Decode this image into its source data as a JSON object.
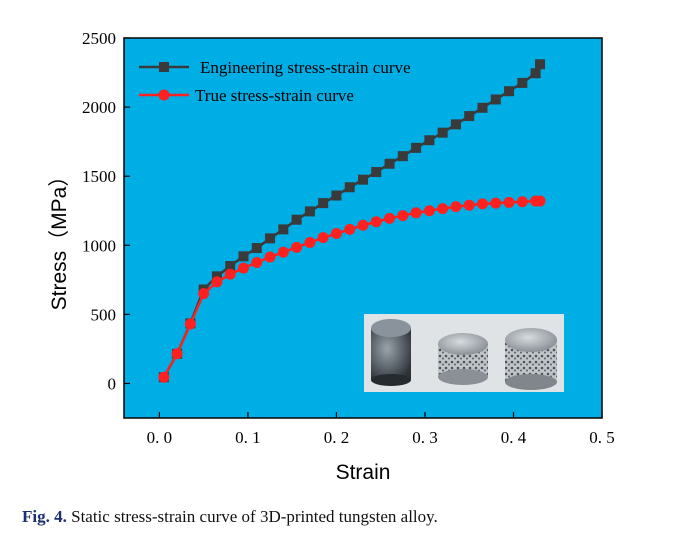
{
  "chart_data": {
    "type": "line",
    "title": "",
    "xlabel": "Strain",
    "ylabel": "Stress（MPa）",
    "xlim": [
      -0.04,
      0.5
    ],
    "ylim": [
      -250,
      2500
    ],
    "x_ticks": [
      0.0,
      0.1,
      0.2,
      0.3,
      0.4,
      0.5
    ],
    "x_tick_labels": [
      "0. 0",
      "0. 1",
      "0. 2",
      "0. 3",
      "0. 4",
      "0. 5"
    ],
    "y_ticks": [
      0,
      500,
      1000,
      1500,
      2000,
      2500
    ],
    "y_tick_labels": [
      "0",
      "500",
      "1000",
      "1500",
      "2000",
      "2500"
    ],
    "grid": false,
    "legend_position": "top-left",
    "plot_background": "#00aee6",
    "series": [
      {
        "name": "Engineering stress-strain curve",
        "color": "#3a3a3a",
        "marker": "square",
        "x": [
          0.005,
          0.02,
          0.035,
          0.05,
          0.065,
          0.08,
          0.095,
          0.11,
          0.125,
          0.14,
          0.155,
          0.17,
          0.185,
          0.2,
          0.215,
          0.23,
          0.245,
          0.26,
          0.275,
          0.29,
          0.305,
          0.32,
          0.335,
          0.35,
          0.365,
          0.38,
          0.395,
          0.41,
          0.425,
          0.43
        ],
        "y": [
          45,
          215,
          435,
          680,
          775,
          850,
          920,
          980,
          1050,
          1115,
          1185,
          1245,
          1305,
          1360,
          1420,
          1475,
          1530,
          1590,
          1645,
          1705,
          1760,
          1815,
          1875,
          1935,
          1995,
          2055,
          2115,
          2175,
          2245,
          2310
        ]
      },
      {
        "name": "True stress-strain curve",
        "color": "#ff2020",
        "marker": "circle",
        "x": [
          0.005,
          0.02,
          0.035,
          0.05,
          0.065,
          0.08,
          0.095,
          0.11,
          0.125,
          0.14,
          0.155,
          0.17,
          0.185,
          0.2,
          0.215,
          0.23,
          0.245,
          0.26,
          0.275,
          0.29,
          0.305,
          0.32,
          0.335,
          0.35,
          0.365,
          0.38,
          0.395,
          0.41,
          0.425,
          0.43
        ],
        "y": [
          45,
          215,
          430,
          650,
          735,
          790,
          835,
          875,
          915,
          950,
          985,
          1020,
          1055,
          1085,
          1115,
          1145,
          1170,
          1195,
          1215,
          1235,
          1250,
          1265,
          1280,
          1290,
          1300,
          1305,
          1310,
          1315,
          1320,
          1320
        ]
      }
    ]
  },
  "inset_image": {
    "description_icon": "tungsten-specimens-photo"
  },
  "caption": {
    "label": "Fig. 4.",
    "text": "Static stress-strain curve of 3D-printed tungsten alloy."
  }
}
